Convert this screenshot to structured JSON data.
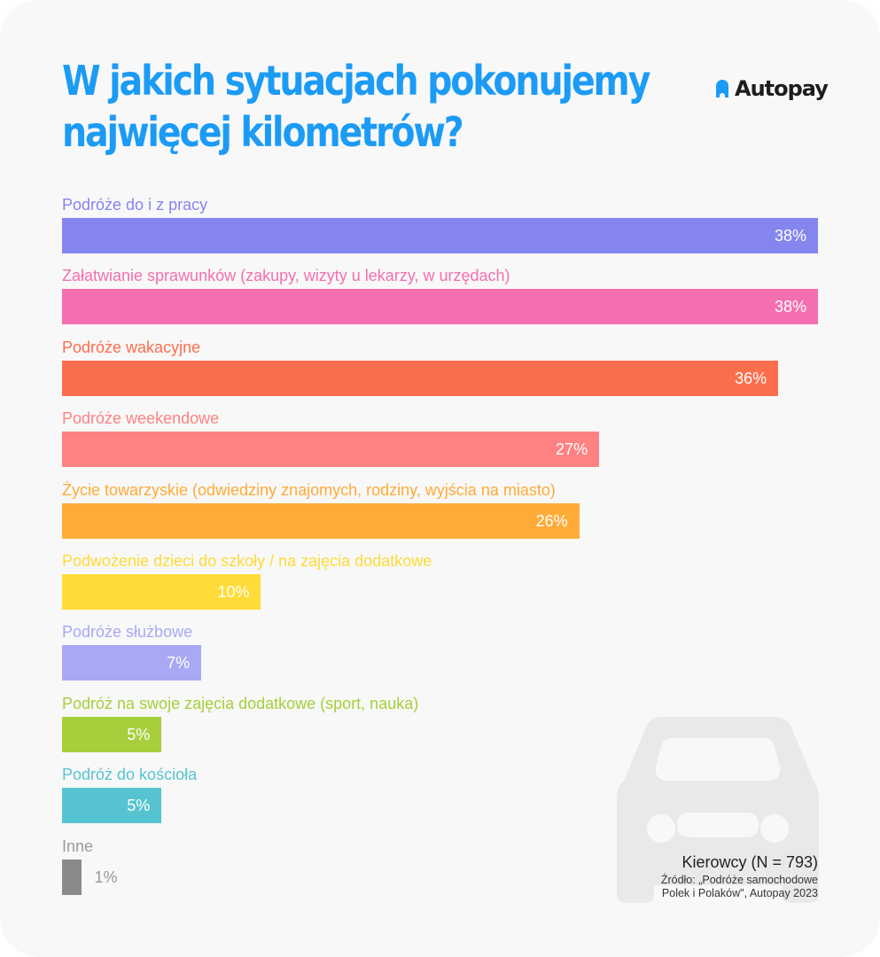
{
  "title": "W jakich sytuacjach pokonujemy najwięcej kilometrów?",
  "logo": "Autopay",
  "footer": {
    "sample": "Kierowcy (N = 793)",
    "source_line1": "Źródło: „Podróże samochodowe",
    "source_line2": "Polek i Polaków\", Autopay 2023"
  },
  "chart_data": {
    "type": "bar",
    "orientation": "horizontal",
    "title": "W jakich sytuacjach pokonujemy najwięcej kilometrów?",
    "xlim": [
      0,
      38
    ],
    "grid": false,
    "categories": [
      "Podróże do i z pracy",
      "Załatwianie sprawunków (zakupy, wizyty u lekarzy, w urzędach)",
      "Podróże wakacyjne",
      "Podróże weekendowe",
      "Życie towarzyskie (odwiedziny znajomych, rodziny, wyjścia na miasto)",
      "Podwożenie dzieci do szkoły / na zajęcia dodatkowe",
      "Podróże służbowe",
      "Podróż na swoje zajęcia dodatkowe (sport, nauka)",
      "Podróż do kościoła",
      "Inne"
    ],
    "values": [
      38,
      38,
      36,
      27,
      26,
      10,
      7,
      5,
      5,
      1
    ],
    "value_labels": [
      "38%",
      "38%",
      "36%",
      "27%",
      "26%",
      "10%",
      "7%",
      "5%",
      "5%",
      "1%"
    ],
    "colors": [
      "#8585f0",
      "#f46fb0",
      "#fb6e4d",
      "#ff8282",
      "#ffab38",
      "#ffdb38",
      "#a8a8f5",
      "#a6cf3b",
      "#56c4d0",
      "#8a8a8a"
    ]
  }
}
